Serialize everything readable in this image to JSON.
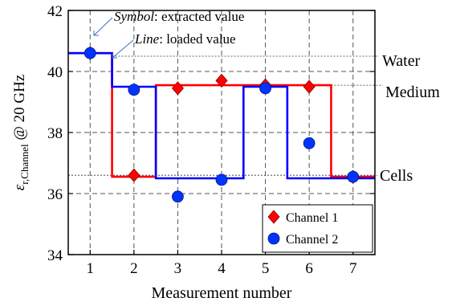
{
  "chart_data": {
    "type": "line",
    "title": "",
    "xlabel": "Measurement number",
    "ylabel": {
      "symbol": "ε",
      "subscript": "r,Channel",
      "suffix": " @ 20 GHz"
    },
    "xlim": [
      0.5,
      7.5
    ],
    "ylim": [
      34,
      42
    ],
    "x_ticks": [
      1,
      2,
      3,
      4,
      5,
      6,
      7
    ],
    "y_ticks": [
      34,
      36,
      38,
      40,
      42
    ],
    "grid": true,
    "legend_position": "bottom-right",
    "series": [
      {
        "name": "Channel 1",
        "kind": "scatter",
        "marker": "diamond",
        "color": "#ff0000",
        "x": [
          1,
          2,
          3,
          4,
          5,
          6,
          7
        ],
        "y": [
          40.6,
          36.6,
          39.45,
          39.7,
          39.55,
          39.5,
          36.55
        ]
      },
      {
        "name": "Channel 2",
        "kind": "scatter",
        "marker": "circle",
        "color": "#0033ff",
        "x": [
          1,
          2,
          3,
          4,
          5,
          6,
          7
        ],
        "y": [
          40.6,
          39.4,
          35.9,
          36.45,
          39.45,
          37.65,
          36.55
        ]
      },
      {
        "name": "Channel 1 loaded",
        "kind": "step",
        "color": "#ff0000",
        "x": [
          1,
          2,
          3,
          4,
          5,
          6,
          7
        ],
        "y": [
          40.6,
          36.55,
          39.55,
          39.55,
          39.55,
          39.55,
          36.55
        ]
      },
      {
        "name": "Channel 2 loaded",
        "kind": "step",
        "color": "#0000ff",
        "x": [
          1,
          2,
          3,
          4,
          5,
          6,
          7
        ],
        "y": [
          40.6,
          39.5,
          36.5,
          36.5,
          39.5,
          36.5,
          36.5
        ]
      }
    ],
    "reference_lines": [
      {
        "label": "Water",
        "y": 40.5,
        "x_start": 1.5
      },
      {
        "label": "Medium",
        "y": 39.55,
        "x_start": 6.5
      },
      {
        "label": "Cells",
        "y": 36.6,
        "x_start": 0.5
      }
    ],
    "annotations": [
      {
        "italic": "Symbol",
        "text": ": extracted value"
      },
      {
        "italic": "Line",
        "text": ": loaded value"
      }
    ],
    "colors": {
      "channel1": "#ff0000",
      "channel2": "#0033ff",
      "axis": "#000000",
      "grid": "#555555"
    }
  }
}
